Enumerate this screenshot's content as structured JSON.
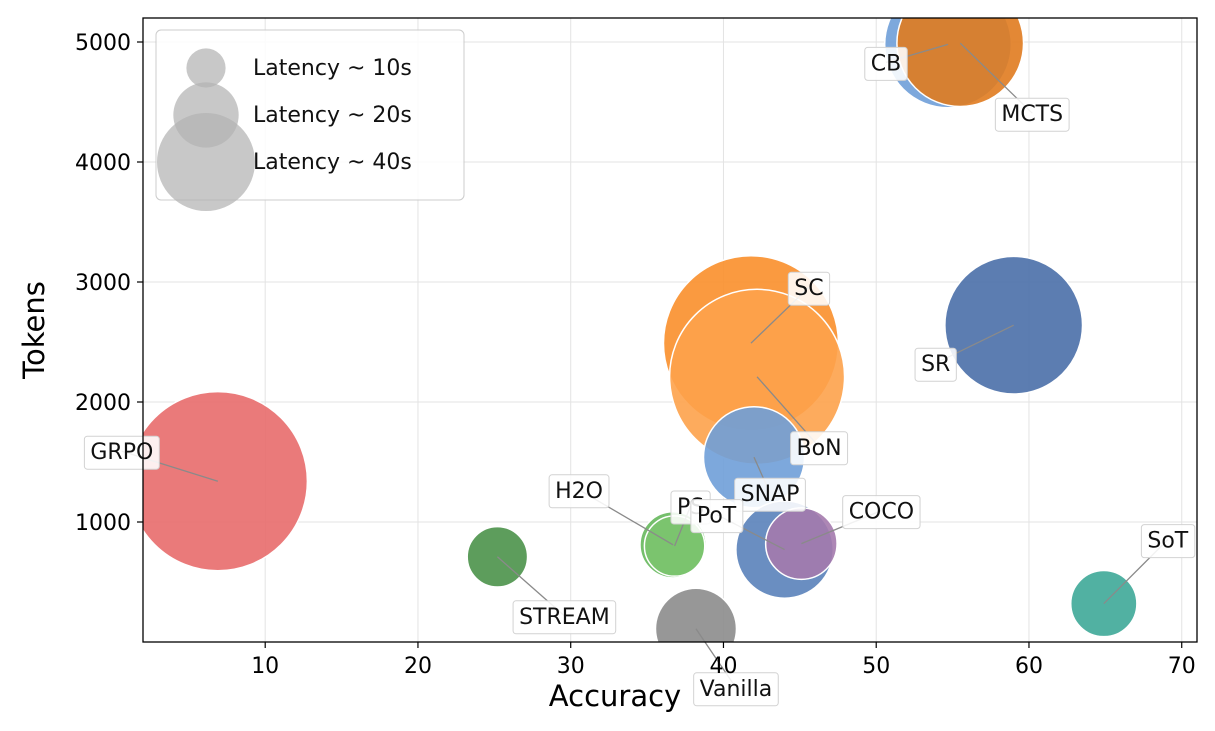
{
  "chart_data": {
    "type": "scatter",
    "xlabel": "Accuracy",
    "ylabel": "Tokens",
    "xlim": [
      2,
      71
    ],
    "ylim": [
      0,
      5200
    ],
    "xticks": [
      10,
      20,
      30,
      40,
      50,
      60,
      70
    ],
    "yticks": [
      1000,
      2000,
      3000,
      4000,
      5000
    ],
    "grid": true,
    "legend_position": "top-left",
    "size_legend": [
      {
        "label": "Latency ~ 10s",
        "latency": 10
      },
      {
        "label": "Latency ~ 20s",
        "latency": 20
      },
      {
        "label": "Latency ~ 40s",
        "latency": 40
      }
    ],
    "points": [
      {
        "label": "CB",
        "x": 54.7,
        "y": 4980,
        "latency": 22,
        "color": "#6f9fd8"
      },
      {
        "label": "MCTS",
        "x": 55.5,
        "y": 4990,
        "latency": 22,
        "color": "#e07b1f"
      },
      {
        "label": "SC",
        "x": 41.8,
        "y": 2490,
        "latency": 42,
        "color": "#f98f2b"
      },
      {
        "label": "BoN",
        "x": 42.2,
        "y": 2210,
        "latency": 42,
        "color": "#fda24b"
      },
      {
        "label": "SR",
        "x": 59.0,
        "y": 2640,
        "latency": 26,
        "color": "#4a6fa8"
      },
      {
        "label": "GRPO",
        "x": 6.9,
        "y": 1340,
        "latency": 44,
        "color": "#e86c6c"
      },
      {
        "label": "SNAP",
        "x": 42.0,
        "y": 1540,
        "latency": 14,
        "color": "#6f9fd8"
      },
      {
        "label": "H2O",
        "x": 36.7,
        "y": 810,
        "latency": 6,
        "color": "#66b85c"
      },
      {
        "label": "PS",
        "x": 36.8,
        "y": 800,
        "latency": 5,
        "color": "#7cc46f"
      },
      {
        "label": "PoT",
        "x": 44.0,
        "y": 770,
        "latency": 13,
        "color": "#5a82ba"
      },
      {
        "label": "COCO",
        "x": 45.1,
        "y": 820,
        "latency": 7,
        "color": "#a47aad"
      },
      {
        "label": "STREAM",
        "x": 25.2,
        "y": 710,
        "latency": 5,
        "color": "#4b924a"
      },
      {
        "label": "Vanilla",
        "x": 38.2,
        "y": 110,
        "latency": 9,
        "color": "#8c8c8c"
      },
      {
        "label": "SoT",
        "x": 64.9,
        "y": 320,
        "latency": 6,
        "color": "#3ea898"
      }
    ]
  }
}
